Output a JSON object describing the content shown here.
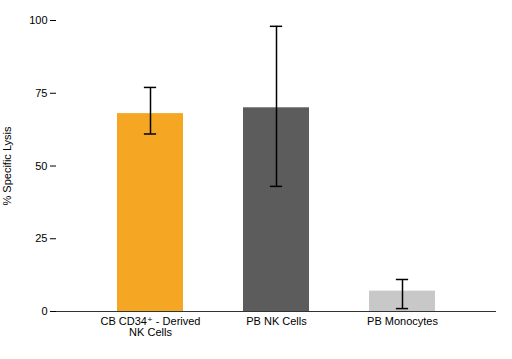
{
  "chart_data": {
    "type": "bar",
    "categories": [
      "CB CD34⁺ - Derived\nNK Cells",
      "PB NK Cells",
      "PB Monocytes"
    ],
    "values": [
      68,
      70,
      7
    ],
    "errors_low": [
      7,
      27,
      6
    ],
    "errors_high": [
      9,
      28,
      4
    ],
    "colors": [
      "#F5A623",
      "#5C5C5C",
      "#C8C8C8"
    ],
    "ylabel": "% Specific Lysis",
    "ylim": [
      0,
      100
    ],
    "yticks": [
      0,
      25,
      50,
      75,
      100
    ],
    "grid": false
  }
}
